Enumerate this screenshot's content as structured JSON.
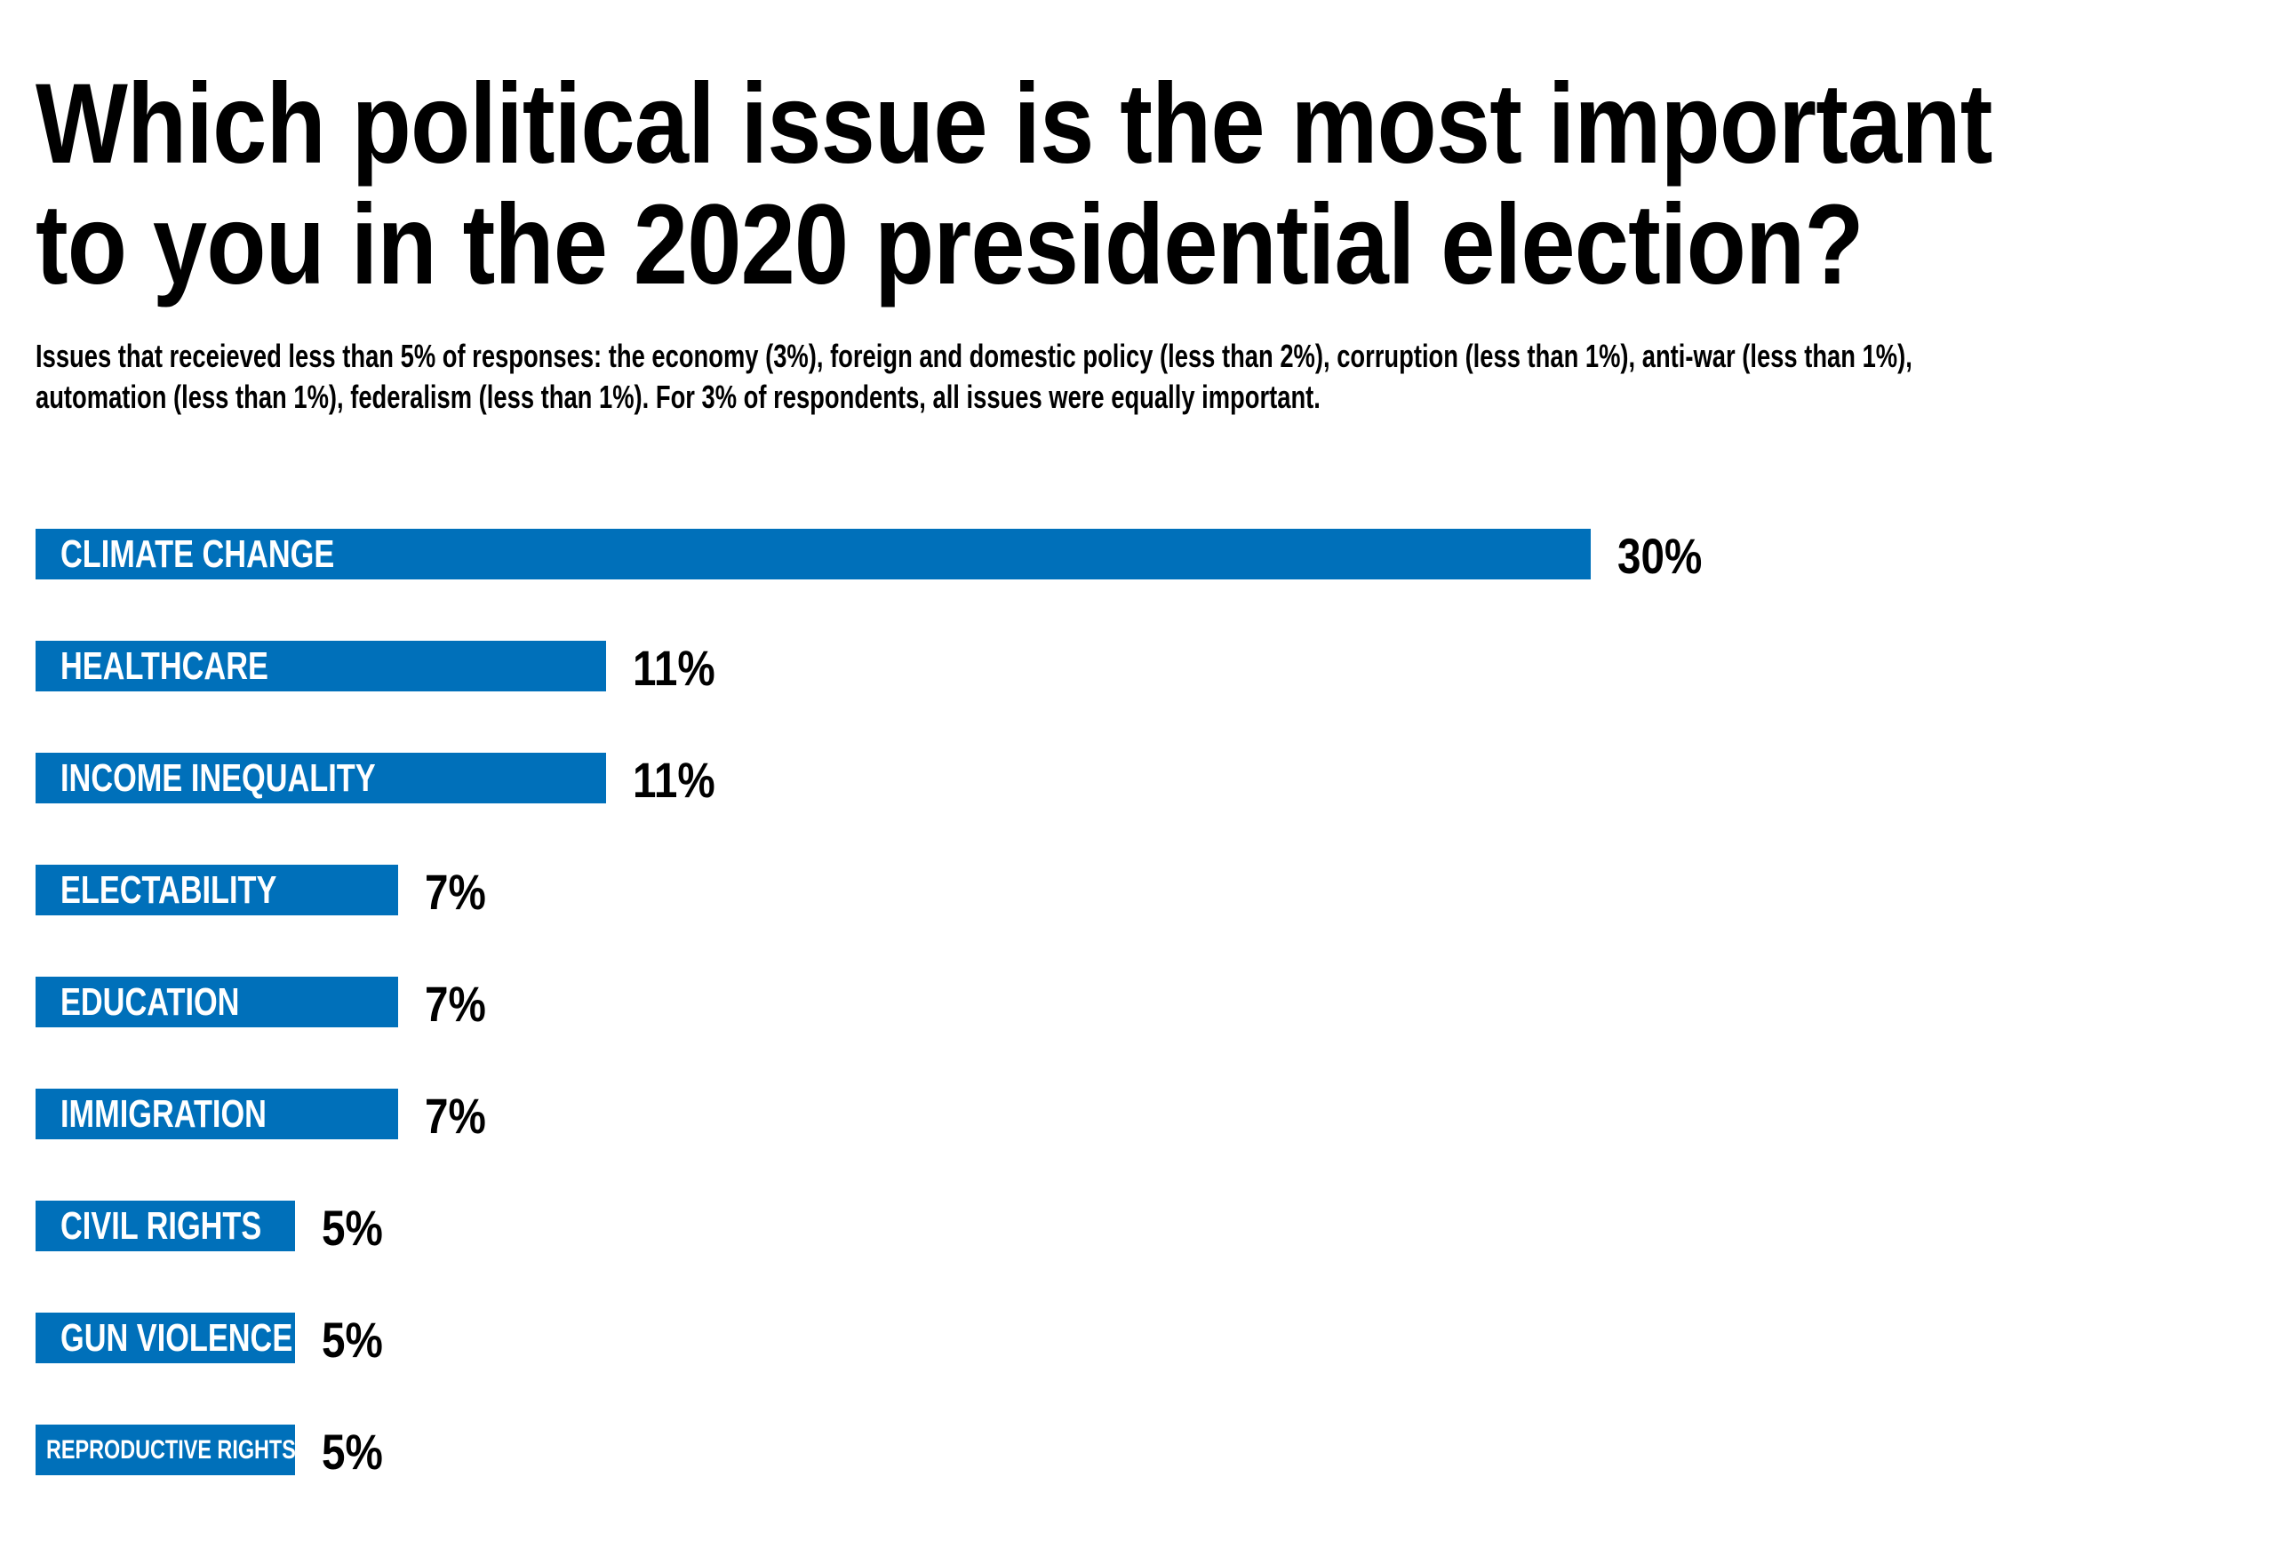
{
  "chart_data": {
    "type": "bar",
    "orientation": "horizontal",
    "title": "Which political issue is the most important to you in the 2020 presidential election?",
    "title_lines": [
      "Which political issue is the most important",
      "to you in the 2020 presidential election?"
    ],
    "subtitle_lines": [
      "Issues that receieved less than 5% of responses: the economy (3%), foreign and domestic policy (less than 2%), corruption (less than 1%), anti-war (less than 1%),",
      "automation (less than 1%), federalism (less than 1%). For 3% of respondents, all issues were equally important."
    ],
    "categories": [
      "CLIMATE CHANGE",
      "HEALTHCARE",
      "INCOME INEQUALITY",
      "ELECTABILITY",
      "EDUCATION",
      "IMMIGRATION",
      "CIVIL RIGHTS",
      "GUN VIOLENCE",
      "REPRODUCTIVE RIGHTS"
    ],
    "values": [
      30,
      11,
      11,
      7,
      7,
      7,
      5,
      5,
      5
    ],
    "value_labels": [
      "30%",
      "11%",
      "11%",
      "7%",
      "7%",
      "7%",
      "5%",
      "5%",
      "5%"
    ],
    "unit": "%",
    "xlim": [
      0,
      30
    ],
    "grid": false,
    "colors": {
      "bar": "#0070ba",
      "bar_text": "#ffffff",
      "text": "#000000"
    }
  }
}
